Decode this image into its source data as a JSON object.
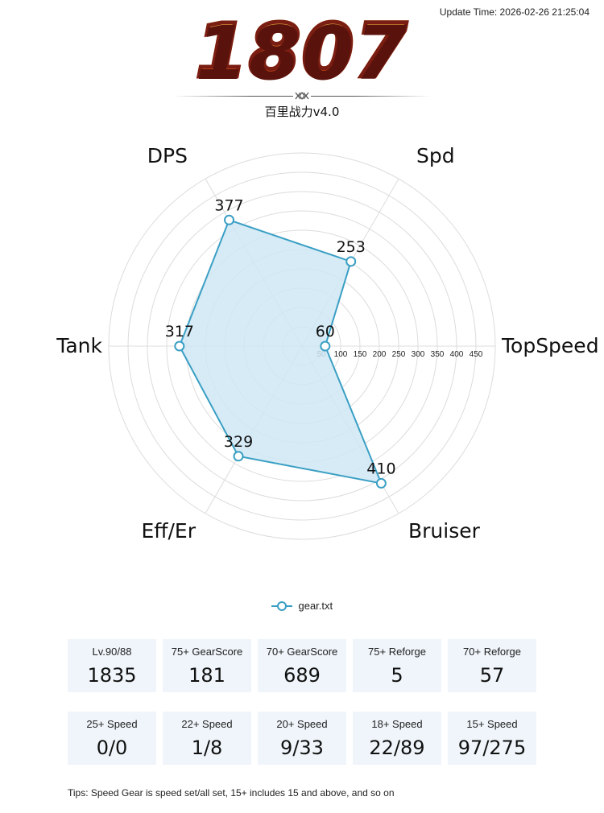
{
  "header": {
    "update_time": "Update Time: 2026-02-26 21:25:04",
    "score": "1807",
    "subtitle": "百里战力v4.0"
  },
  "chart_data": {
    "type": "radar",
    "categories": [
      "Spd",
      "TopSpeed",
      "Bruiser",
      "Eff/Er",
      "Tank",
      "DPS"
    ],
    "series": [
      {
        "name": "gear.txt",
        "values": [
          253,
          60,
          410,
          329,
          317,
          377
        ]
      }
    ],
    "rlim": [
      0,
      500
    ],
    "rticks": [
      50,
      100,
      150,
      200,
      250,
      300,
      350,
      400,
      450
    ],
    "grid": true,
    "legend": "bottom",
    "colors": {
      "line": "#3a9fc4",
      "fill": "#cfe7f5",
      "grid": "#dcdcdc"
    }
  },
  "stats": {
    "row1": [
      {
        "label": "Lv.90/88",
        "value": "1835"
      },
      {
        "label": "75+ GearScore",
        "value": "181"
      },
      {
        "label": "70+ GearScore",
        "value": "689"
      },
      {
        "label": "75+ Reforge",
        "value": "5"
      },
      {
        "label": "70+ Reforge",
        "value": "57"
      }
    ],
    "row2": [
      {
        "label": "25+ Speed",
        "value": "0/0"
      },
      {
        "label": "22+ Speed",
        "value": "1/8"
      },
      {
        "label": "20+ Speed",
        "value": "9/33"
      },
      {
        "label": "18+ Speed",
        "value": "22/89"
      },
      {
        "label": "15+ Speed",
        "value": "97/275"
      }
    ]
  },
  "tips": "Tips: Speed Gear is speed set/all set, 15+ includes 15 and above, and so on"
}
